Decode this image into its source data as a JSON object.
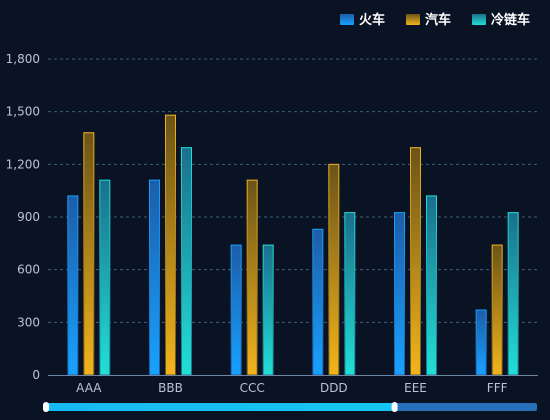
{
  "chart_data": {
    "type": "bar",
    "categories": [
      "AAA",
      "BBB",
      "CCC",
      "DDD",
      "EEE",
      "FFF"
    ],
    "series": [
      {
        "name": "火车",
        "values": [
          1020,
          1110,
          740,
          830,
          925,
          370
        ],
        "color_top": "#1d5da8",
        "color_bottom": "#18a2ff"
      },
      {
        "name": "汽车",
        "values": [
          1380,
          1480,
          1110,
          1200,
          1295,
          740
        ],
        "color_top": "#6b5418",
        "color_bottom": "#f3b41c"
      },
      {
        "name": "冷链车",
        "values": [
          1110,
          1295,
          740,
          925,
          1020,
          925
        ],
        "color_top": "#1b6f8c",
        "color_bottom": "#21e0d6"
      }
    ],
    "y_ticks": [
      "0",
      "300",
      "600",
      "900",
      "1,200",
      "1,500",
      "1,800"
    ],
    "ylim": [
      0,
      1800
    ],
    "grid": true,
    "legend_position": "top-right",
    "datazoom": {
      "start": 0,
      "end": 0.71
    }
  }
}
